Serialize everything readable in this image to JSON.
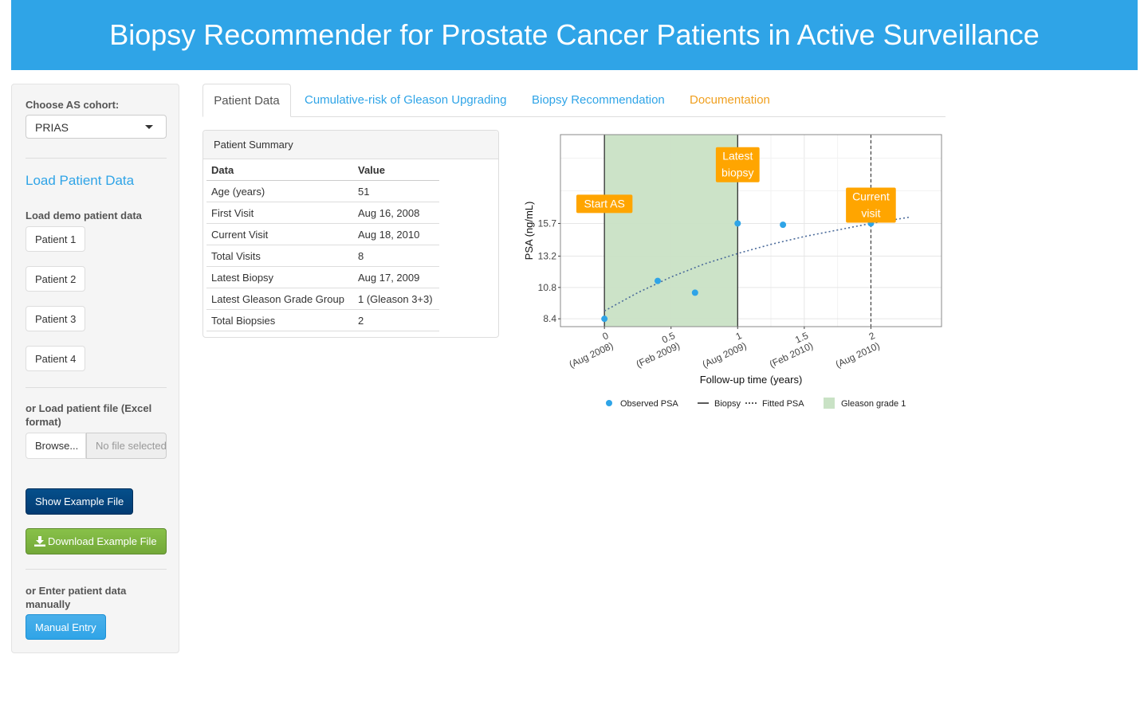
{
  "header": {
    "title": "Biopsy Recommender for Prostate Cancer Patients in Active Surveillance"
  },
  "sidebar": {
    "cohort_label": "Choose AS cohort:",
    "cohort_value": "PRIAS",
    "load_title": "Load Patient Data",
    "demo_label": "Load demo patient data",
    "patients": [
      "Patient 1",
      "Patient 2",
      "Patient 3",
      "Patient 4"
    ],
    "file_label": "or Load patient file (Excel format)",
    "browse_label": "Browse...",
    "file_placeholder": "No file selected",
    "show_example": "Show Example File",
    "download_example": "Download Example File",
    "manual_label": "or Enter patient data manually",
    "manual_entry": "Manual Entry"
  },
  "tabs": [
    {
      "label": "Patient Data",
      "color": "#555555"
    },
    {
      "label": "Cumulative-risk of Gleason Upgrading",
      "color": "#2fa4e7"
    },
    {
      "label": "Biopsy Recommendation",
      "color": "#2fa4e7"
    },
    {
      "label": "Documentation",
      "color": "#f0a020"
    }
  ],
  "summary": {
    "heading": "Patient Summary",
    "columns": [
      "Data",
      "Value"
    ],
    "rows": [
      [
        "Age (years)",
        "51"
      ],
      [
        "First Visit",
        "Aug 16, 2008"
      ],
      [
        "Current Visit",
        "Aug 18, 2010"
      ],
      [
        "Total Visits",
        "8"
      ],
      [
        "Latest Biopsy",
        "Aug 17, 2009"
      ],
      [
        "Latest Gleason Grade Group",
        "1 (Gleason 3+3)"
      ],
      [
        "Total Biopsies",
        "2"
      ]
    ]
  },
  "chart_data": {
    "type": "scatter",
    "xlabel": "Follow-up time (years)",
    "ylabel": "PSA (ng/mL)",
    "xlim": [
      -0.33,
      2.53
    ],
    "ylim": [
      7.8,
      22.5
    ],
    "x_ticks": [
      {
        "value": 0,
        "label": "0",
        "sublabel": "(Aug 2008)"
      },
      {
        "value": 0.5,
        "label": "0.5",
        "sublabel": "(Feb 2009)"
      },
      {
        "value": 1,
        "label": "1",
        "sublabel": "(Aug 2009)"
      },
      {
        "value": 1.5,
        "label": "1.5",
        "sublabel": "(Feb 2010)"
      },
      {
        "value": 2,
        "label": "2",
        "sublabel": "(Aug 2010)"
      }
    ],
    "y_ticks": [
      {
        "value": 8.4,
        "label": "8.4"
      },
      {
        "value": 10.8,
        "label": "10.8"
      },
      {
        "value": 13.2,
        "label": "13.2"
      },
      {
        "value": 15.7,
        "label": "15.7"
      }
    ],
    "observed_psa": [
      {
        "x": 0.0,
        "y": 8.4
      },
      {
        "x": 0.4,
        "y": 11.3
      },
      {
        "x": 0.68,
        "y": 10.4
      },
      {
        "x": 1.0,
        "y": 15.7
      },
      {
        "x": 1.34,
        "y": 15.6
      },
      {
        "x": 2.0,
        "y": 15.7
      }
    ],
    "fitted_psa": [
      {
        "x": 0.0,
        "y": 9.0
      },
      {
        "x": 0.25,
        "y": 10.4
      },
      {
        "x": 0.5,
        "y": 11.6
      },
      {
        "x": 0.75,
        "y": 12.6
      },
      {
        "x": 1.0,
        "y": 13.4
      },
      {
        "x": 1.25,
        "y": 14.1
      },
      {
        "x": 1.5,
        "y": 14.7
      },
      {
        "x": 1.75,
        "y": 15.2
      },
      {
        "x": 2.0,
        "y": 15.7
      },
      {
        "x": 2.3,
        "y": 16.2
      }
    ],
    "gleason_region": {
      "x_start": 0,
      "x_end": 1
    },
    "biopsy_lines": [
      0,
      1
    ],
    "current_visit_line": 2,
    "annotations": [
      {
        "x": 0,
        "y": 17.2,
        "lines": [
          "Start AS"
        ]
      },
      {
        "x": 1,
        "y": 20.2,
        "lines": [
          "Latest",
          "biopsy"
        ]
      },
      {
        "x": 2,
        "y": 17.1,
        "lines": [
          "Current",
          "visit"
        ]
      }
    ],
    "legend": {
      "position": "bottom",
      "items": [
        "Observed PSA",
        "Biopsy",
        "Fitted PSA",
        "Gleason grade 1"
      ]
    },
    "colors": {
      "point": "#2fa4e7",
      "fitted": "#4a6a9a",
      "region": "#c9e2c5",
      "annotation": "#ffa500"
    }
  }
}
